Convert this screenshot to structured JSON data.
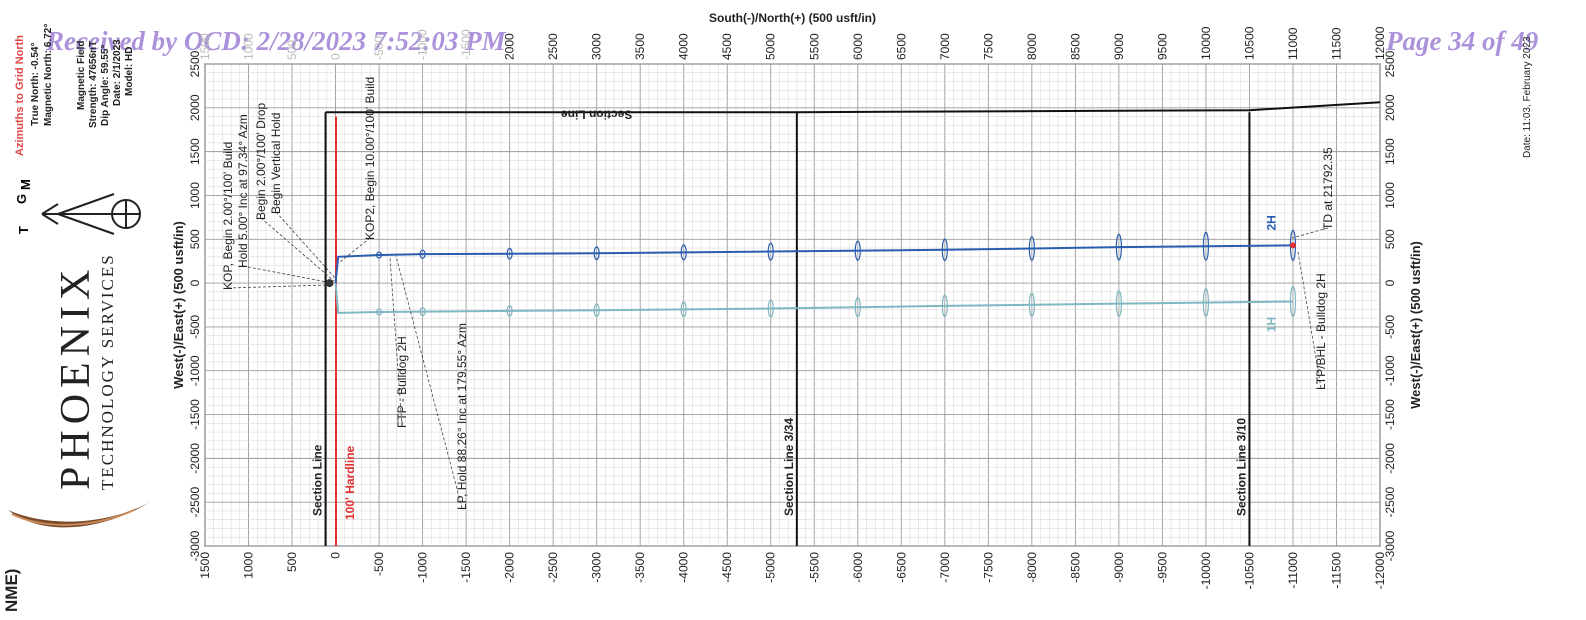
{
  "header": {
    "received_stamp": "Received by OCD: 2/28/2023 7:52:03 PM",
    "page_stamp": "Page 34 of 49",
    "date_footer": "Date: 11:03, February 2023",
    "left_edge_text": "NME)"
  },
  "company": {
    "name": "PHOENIX",
    "tagline": "TECHNOLOGY SERVICES"
  },
  "north_reference": {
    "title": "Azimuths to Grid North",
    "lines": [
      "True North: -0.54°",
      "Magnetic North: 6.72°"
    ],
    "magnetic_field": [
      "Magnetic Field",
      "Strength: 47656nT",
      "Dip Angle: 59.55°",
      "Date: 2/1/2023",
      "Model: HD"
    ],
    "arrow_letters": [
      "T",
      "G",
      "M"
    ]
  },
  "chart_data": {
    "type": "line",
    "top_axis_title": "South(-)/North(+) (500 usft/in)",
    "left_axis_title": "West(-)/East(+) (500 usft/in)",
    "right_axis_title": "West(-)/East(+) (500 usft/in)",
    "top_ticks": [
      "1500",
      "1000",
      "500",
      "0",
      "-500",
      "-1000",
      "-1500",
      "-2000",
      "-2500",
      "-3000",
      "-3500",
      "-4000",
      "-4500",
      "-5000",
      "-5500",
      "-6000",
      "-6500",
      "-7000",
      "-7500",
      "-8000",
      "-8500",
      "-9000",
      "-9500",
      "-10000",
      "-10500",
      "-11000",
      "-11500",
      "-12000"
    ],
    "top_tick_labels_shown": [
      "2000",
      "2500",
      "3000",
      "3500",
      "4000",
      "4500",
      "5000",
      "5500",
      "6000",
      "6500",
      "7000",
      "7500",
      "8000",
      "8500",
      "9000",
      "9500",
      "10000",
      "10500",
      "11000",
      "11500",
      "12000"
    ],
    "bottom_ticks": [
      "1500",
      "1000",
      "500",
      "0",
      "-500",
      "-1000",
      "-1500",
      "-2000",
      "-2500",
      "-3000",
      "-3500",
      "-4000",
      "-4500",
      "-5000",
      "-5500",
      "-6000",
      "-6500",
      "-7000",
      "-7500",
      "-8000",
      "-8500",
      "-9000",
      "-9500",
      "-10000",
      "-10500",
      "-11000",
      "-11500",
      "-12000"
    ],
    "vertical_ticks": [
      "2500",
      "2000",
      "1500",
      "1000",
      "500",
      "0",
      "-500",
      "-1000",
      "-1500",
      "-2000",
      "-2500",
      "-3000"
    ],
    "x_range": [
      1500,
      -12000
    ],
    "y_range": [
      -3000,
      2500
    ],
    "series": [
      {
        "name": "2H",
        "color": "#2a5db0",
        "points": [
          [
            0,
            0
          ],
          [
            -30,
            300
          ],
          [
            -500,
            320
          ],
          [
            -1000,
            330
          ],
          [
            -3000,
            340
          ],
          [
            -5000,
            360
          ],
          [
            -7000,
            380
          ],
          [
            -9000,
            410
          ],
          [
            -11000,
            430
          ]
        ]
      },
      {
        "name": "1H",
        "color": "#7fb7c2",
        "points": [
          [
            0,
            0
          ],
          [
            -30,
            -340
          ],
          [
            -500,
            -330
          ],
          [
            -1000,
            -325
          ],
          [
            -3000,
            -310
          ],
          [
            -5000,
            -290
          ],
          [
            -7000,
            -260
          ],
          [
            -9000,
            -235
          ],
          [
            -11000,
            -210
          ]
        ]
      }
    ],
    "uncertainty_ellipses_x": [
      -500,
      -1000,
      -2000,
      -3000,
      -4000,
      -5000,
      -6000,
      -7000,
      -8000,
      -9000,
      -10000,
      -11000
    ],
    "section_lines": [
      {
        "label": "Section Line",
        "x": 0
      },
      {
        "label": "Section Line 3/34",
        "x": -5300
      },
      {
        "label": "Section Line 3/10",
        "x": -10500
      }
    ],
    "section_top_label": "Section Line",
    "hardline_label": "100' Hardline",
    "annotations": [
      "KOP, Begin 2.00°/100' Build",
      "Hold 5.00° Inc at 97.34° Azm",
      "Begin 2.00°/100' Drop",
      "Begin Vertical Hold",
      "KOP2, Begin 10.00°/100' Build",
      "FTP - Bulldog 2H",
      "LP, Hold 88.26° Inc at 179.55° Azm",
      "TD at 21792.35",
      "LTP/BHL - Bulldog 2H"
    ],
    "series_labels": [
      "2H",
      "1H"
    ]
  }
}
